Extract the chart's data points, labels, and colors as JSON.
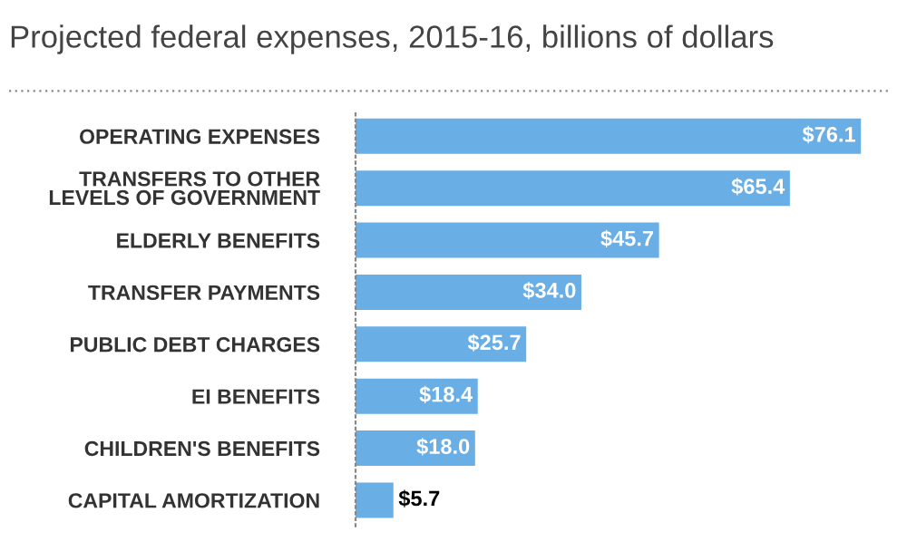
{
  "chart_data": {
    "type": "bar",
    "orientation": "horizontal",
    "title": "Projected federal expenses, 2015-16, billions of dollars",
    "categories": [
      "OPERATING EXPENSES",
      "TRANSFERS TO OTHER\nLEVELS OF GOVERNMENT",
      "ELDERLY BENEFITS",
      "TRANSFER PAYMENTS",
      "PUBLIC DEBT CHARGES",
      "EI BENEFITS",
      "CHILDREN'S BENEFITS",
      "CAPITAL AMORTIZATION"
    ],
    "values": [
      76.1,
      65.4,
      45.7,
      34.0,
      25.7,
      18.4,
      18.0,
      5.7
    ],
    "value_labels": [
      "$76.1",
      "$65.4",
      "$45.7",
      "$34.0",
      "$25.7",
      "$18.4",
      "$18.0",
      "$5.7"
    ],
    "color": "#6aaee6"
  }
}
